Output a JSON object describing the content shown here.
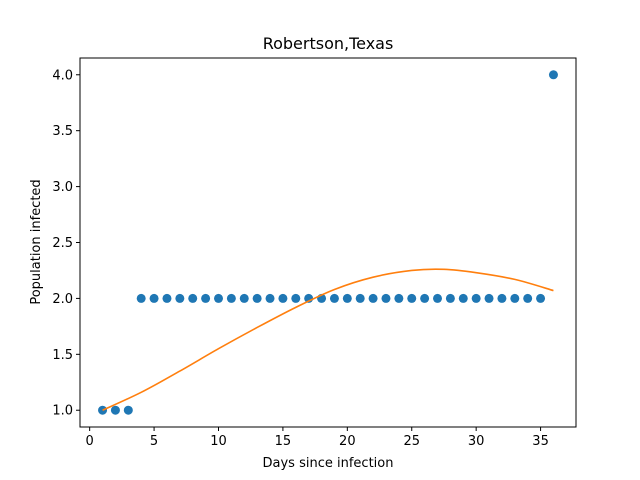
{
  "chart_data": {
    "type": "scatter",
    "title": "Robertson,Texas",
    "xlabel": "Days since infection",
    "ylabel": "Population infected",
    "xlim": [
      -0.75,
      37.75
    ],
    "ylim": [
      0.85,
      4.15
    ],
    "xticks": [
      0,
      5,
      10,
      15,
      20,
      25,
      30,
      35
    ],
    "yticks": [
      1.0,
      1.5,
      2.0,
      2.5,
      3.0,
      3.5,
      4.0
    ],
    "xtick_labels": [
      "0",
      "5",
      "10",
      "15",
      "20",
      "25",
      "30",
      "35"
    ],
    "ytick_labels": [
      "1.0",
      "1.5",
      "2.0",
      "2.5",
      "3.0",
      "3.5",
      "4.0"
    ],
    "grid": false,
    "series": [
      {
        "kind": "scatter",
        "color": "#1f77b4",
        "x": [
          1,
          2,
          3,
          4,
          5,
          6,
          7,
          8,
          9,
          10,
          11,
          12,
          13,
          14,
          15,
          16,
          17,
          18,
          19,
          20,
          21,
          22,
          23,
          24,
          25,
          26,
          27,
          28,
          29,
          30,
          31,
          32,
          33,
          34,
          35,
          36
        ],
        "y": [
          1,
          1,
          1,
          2,
          2,
          2,
          2,
          2,
          2,
          2,
          2,
          2,
          2,
          2,
          2,
          2,
          2,
          2,
          2,
          2,
          2,
          2,
          2,
          2,
          2,
          2,
          2,
          2,
          2,
          2,
          2,
          2,
          2,
          2,
          2,
          4
        ]
      },
      {
        "kind": "line",
        "color": "#ff7f0e",
        "x": [
          1,
          4,
          7,
          10,
          13,
          16,
          19,
          22,
          25,
          27.5,
          30,
          33,
          36
        ],
        "y": [
          1.0,
          1.16,
          1.35,
          1.55,
          1.74,
          1.92,
          2.08,
          2.19,
          2.25,
          2.26,
          2.23,
          2.17,
          2.07
        ]
      }
    ]
  }
}
